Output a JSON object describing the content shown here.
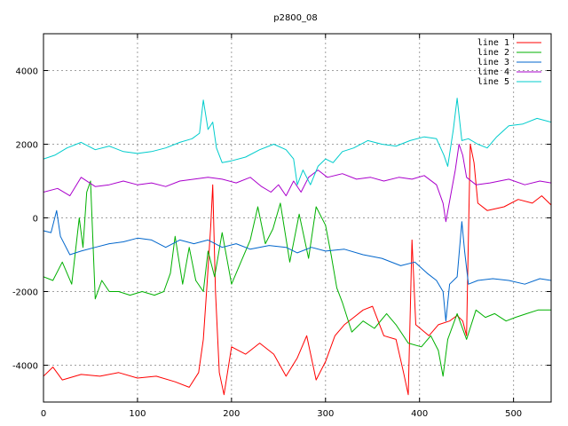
{
  "chart_data": {
    "type": "line",
    "title": "p2800_08",
    "xlabel": "",
    "ylabel": "",
    "xlim": [
      0,
      540
    ],
    "ylim": [
      -5000,
      5000
    ],
    "x_ticks": [
      0,
      100,
      200,
      300,
      400,
      500
    ],
    "y_ticks": [
      -4000,
      -2000,
      0,
      2000,
      4000
    ],
    "grid": true,
    "legend_position": "top-right",
    "series": [
      {
        "name": "line 1",
        "color": "#ff0000",
        "points": [
          [
            0,
            -4300
          ],
          [
            10,
            -4050
          ],
          [
            20,
            -4400
          ],
          [
            40,
            -4250
          ],
          [
            60,
            -4300
          ],
          [
            80,
            -4200
          ],
          [
            100,
            -4350
          ],
          [
            120,
            -4300
          ],
          [
            140,
            -4450
          ],
          [
            155,
            -4600
          ],
          [
            165,
            -4200
          ],
          [
            170,
            -3300
          ],
          [
            174,
            -1800
          ],
          [
            178,
            -200
          ],
          [
            180,
            900
          ],
          [
            183,
            -2000
          ],
          [
            187,
            -4200
          ],
          [
            192,
            -4800
          ],
          [
            200,
            -3500
          ],
          [
            215,
            -3700
          ],
          [
            230,
            -3400
          ],
          [
            245,
            -3700
          ],
          [
            258,
            -4300
          ],
          [
            270,
            -3800
          ],
          [
            280,
            -3200
          ],
          [
            290,
            -4400
          ],
          [
            300,
            -3900
          ],
          [
            310,
            -3200
          ],
          [
            320,
            -2900
          ],
          [
            330,
            -2700
          ],
          [
            340,
            -2500
          ],
          [
            350,
            -2400
          ],
          [
            362,
            -3200
          ],
          [
            375,
            -3300
          ],
          [
            383,
            -4200
          ],
          [
            388,
            -4800
          ],
          [
            392,
            -600
          ],
          [
            396,
            -2900
          ],
          [
            410,
            -3200
          ],
          [
            420,
            -2900
          ],
          [
            432,
            -2800
          ],
          [
            440,
            -2650
          ],
          [
            446,
            -2800
          ],
          [
            450,
            -3200
          ],
          [
            452,
            -500
          ],
          [
            454,
            2000
          ],
          [
            458,
            1500
          ],
          [
            462,
            400
          ],
          [
            472,
            200
          ],
          [
            490,
            300
          ],
          [
            505,
            500
          ],
          [
            520,
            400
          ],
          [
            530,
            600
          ],
          [
            540,
            350
          ]
        ]
      },
      {
        "name": "line 2",
        "color": "#00b000",
        "points": [
          [
            0,
            -1600
          ],
          [
            10,
            -1700
          ],
          [
            20,
            -1200
          ],
          [
            30,
            -1800
          ],
          [
            38,
            0
          ],
          [
            42,
            -800
          ],
          [
            46,
            700
          ],
          [
            50,
            1000
          ],
          [
            55,
            -2200
          ],
          [
            62,
            -1700
          ],
          [
            70,
            -2000
          ],
          [
            80,
            -2000
          ],
          [
            92,
            -2100
          ],
          [
            105,
            -2000
          ],
          [
            118,
            -2100
          ],
          [
            128,
            -2000
          ],
          [
            135,
            -1500
          ],
          [
            140,
            -500
          ],
          [
            148,
            -1800
          ],
          [
            155,
            -800
          ],
          [
            162,
            -1700
          ],
          [
            170,
            -2000
          ],
          [
            175,
            -900
          ],
          [
            182,
            -1600
          ],
          [
            190,
            -400
          ],
          [
            200,
            -1800
          ],
          [
            210,
            -1200
          ],
          [
            220,
            -600
          ],
          [
            228,
            300
          ],
          [
            236,
            -700
          ],
          [
            244,
            -300
          ],
          [
            252,
            400
          ],
          [
            262,
            -1200
          ],
          [
            272,
            100
          ],
          [
            282,
            -1100
          ],
          [
            290,
            300
          ],
          [
            300,
            -200
          ],
          [
            306,
            -1000
          ],
          [
            312,
            -1900
          ],
          [
            318,
            -2300
          ],
          [
            328,
            -3100
          ],
          [
            340,
            -2800
          ],
          [
            352,
            -3000
          ],
          [
            365,
            -2600
          ],
          [
            375,
            -2900
          ],
          [
            388,
            -3400
          ],
          [
            402,
            -3500
          ],
          [
            412,
            -3200
          ],
          [
            420,
            -3600
          ],
          [
            425,
            -4300
          ],
          [
            430,
            -3300
          ],
          [
            440,
            -2600
          ],
          [
            450,
            -3300
          ],
          [
            460,
            -2500
          ],
          [
            470,
            -2700
          ],
          [
            480,
            -2600
          ],
          [
            492,
            -2800
          ],
          [
            502,
            -2700
          ],
          [
            514,
            -2600
          ],
          [
            526,
            -2500
          ],
          [
            540,
            -2500
          ]
        ]
      },
      {
        "name": "line 3",
        "color": "#0066cc",
        "points": [
          [
            0,
            -350
          ],
          [
            8,
            -400
          ],
          [
            14,
            200
          ],
          [
            18,
            -500
          ],
          [
            28,
            -1000
          ],
          [
            40,
            -900
          ],
          [
            55,
            -800
          ],
          [
            70,
            -700
          ],
          [
            85,
            -650
          ],
          [
            100,
            -550
          ],
          [
            115,
            -600
          ],
          [
            130,
            -800
          ],
          [
            145,
            -600
          ],
          [
            160,
            -700
          ],
          [
            175,
            -600
          ],
          [
            190,
            -800
          ],
          [
            205,
            -700
          ],
          [
            220,
            -850
          ],
          [
            240,
            -750
          ],
          [
            258,
            -800
          ],
          [
            270,
            -950
          ],
          [
            285,
            -800
          ],
          [
            300,
            -900
          ],
          [
            320,
            -850
          ],
          [
            340,
            -1000
          ],
          [
            360,
            -1100
          ],
          [
            380,
            -1300
          ],
          [
            395,
            -1200
          ],
          [
            408,
            -1500
          ],
          [
            418,
            -1700
          ],
          [
            425,
            -2000
          ],
          [
            428,
            -2800
          ],
          [
            432,
            -1800
          ],
          [
            440,
            -1600
          ],
          [
            445,
            -100
          ],
          [
            448,
            -900
          ],
          [
            452,
            -1800
          ],
          [
            462,
            -1700
          ],
          [
            478,
            -1650
          ],
          [
            495,
            -1700
          ],
          [
            512,
            -1800
          ],
          [
            528,
            -1650
          ],
          [
            540,
            -1700
          ]
        ]
      },
      {
        "name": "line 4",
        "color": "#aa00cc",
        "points": [
          [
            0,
            700
          ],
          [
            15,
            800
          ],
          [
            28,
            600
          ],
          [
            40,
            1100
          ],
          [
            55,
            850
          ],
          [
            70,
            900
          ],
          [
            85,
            1000
          ],
          [
            100,
            900
          ],
          [
            115,
            950
          ],
          [
            130,
            850
          ],
          [
            145,
            1000
          ],
          [
            160,
            1050
          ],
          [
            175,
            1100
          ],
          [
            190,
            1050
          ],
          [
            205,
            950
          ],
          [
            220,
            1100
          ],
          [
            232,
            850
          ],
          [
            242,
            700
          ],
          [
            250,
            900
          ],
          [
            258,
            600
          ],
          [
            266,
            1000
          ],
          [
            274,
            700
          ],
          [
            282,
            1100
          ],
          [
            292,
            1300
          ],
          [
            302,
            1100
          ],
          [
            318,
            1200
          ],
          [
            333,
            1050
          ],
          [
            348,
            1100
          ],
          [
            362,
            1000
          ],
          [
            378,
            1100
          ],
          [
            392,
            1050
          ],
          [
            405,
            1150
          ],
          [
            418,
            900
          ],
          [
            425,
            400
          ],
          [
            428,
            -100
          ],
          [
            433,
            600
          ],
          [
            438,
            1300
          ],
          [
            442,
            2000
          ],
          [
            446,
            1700
          ],
          [
            450,
            1100
          ],
          [
            460,
            900
          ],
          [
            475,
            950
          ],
          [
            495,
            1050
          ],
          [
            512,
            900
          ],
          [
            528,
            1000
          ],
          [
            540,
            950
          ]
        ]
      },
      {
        "name": "line 5",
        "color": "#00cccc",
        "points": [
          [
            0,
            1600
          ],
          [
            12,
            1700
          ],
          [
            25,
            1900
          ],
          [
            40,
            2050
          ],
          [
            55,
            1850
          ],
          [
            70,
            1950
          ],
          [
            85,
            1800
          ],
          [
            100,
            1750
          ],
          [
            115,
            1800
          ],
          [
            130,
            1900
          ],
          [
            145,
            2050
          ],
          [
            158,
            2150
          ],
          [
            166,
            2300
          ],
          [
            170,
            3200
          ],
          [
            175,
            2400
          ],
          [
            180,
            2600
          ],
          [
            184,
            1900
          ],
          [
            190,
            1500
          ],
          [
            200,
            1550
          ],
          [
            215,
            1650
          ],
          [
            230,
            1850
          ],
          [
            245,
            2000
          ],
          [
            258,
            1850
          ],
          [
            266,
            1600
          ],
          [
            270,
            900
          ],
          [
            276,
            1300
          ],
          [
            284,
            900
          ],
          [
            292,
            1400
          ],
          [
            300,
            1600
          ],
          [
            308,
            1500
          ],
          [
            318,
            1800
          ],
          [
            330,
            1900
          ],
          [
            345,
            2100
          ],
          [
            360,
            2000
          ],
          [
            375,
            1950
          ],
          [
            390,
            2100
          ],
          [
            405,
            2200
          ],
          [
            418,
            2150
          ],
          [
            426,
            1700
          ],
          [
            430,
            1400
          ],
          [
            436,
            2400
          ],
          [
            440,
            3250
          ],
          [
            445,
            2100
          ],
          [
            452,
            2150
          ],
          [
            462,
            2000
          ],
          [
            472,
            1900
          ],
          [
            482,
            2200
          ],
          [
            495,
            2500
          ],
          [
            510,
            2550
          ],
          [
            525,
            2700
          ],
          [
            540,
            2600
          ]
        ]
      }
    ]
  }
}
